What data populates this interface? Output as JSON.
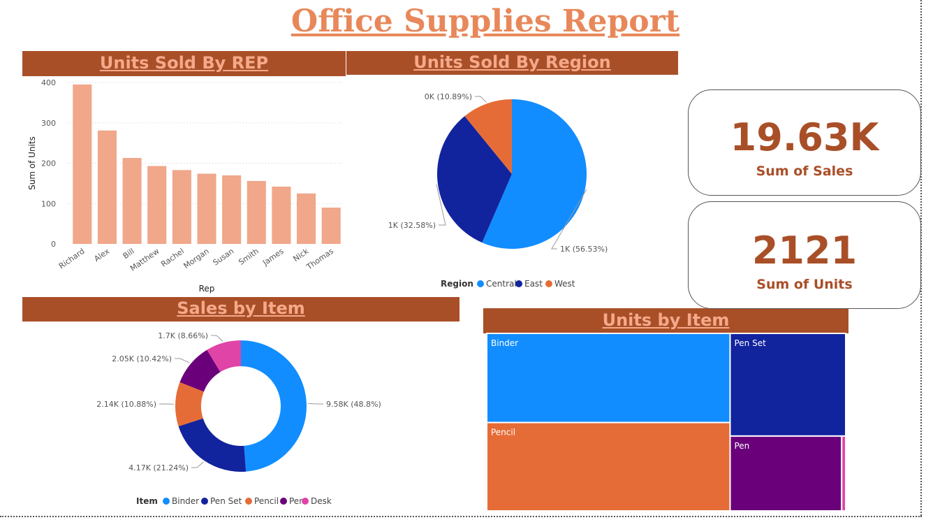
{
  "report": {
    "title": "Office Supplies Report"
  },
  "headers": {
    "rep": "Units Sold By REP",
    "region": "Units Sold By Region",
    "sales_item": "Sales by Item",
    "units_item": "Units by Item"
  },
  "kpis": {
    "sales": {
      "value": "19.63K",
      "label": "Sum of Sales"
    },
    "units": {
      "value": "2121",
      "label": "Sum of Units"
    }
  },
  "colors": {
    "header_bg": "#a94f28",
    "header_text": "#f5a98a",
    "bar": "#f0a78a",
    "blue": "#118dff",
    "navy": "#12239e",
    "orange": "#e66c37",
    "purple": "#6b007b",
    "pink": "#e044a7"
  },
  "chart_data": [
    {
      "type": "bar",
      "title": "Units Sold By REP",
      "xlabel": "Rep",
      "ylabel": "Sum of Units",
      "ylim": [
        0,
        400
      ],
      "yticks": [
        0,
        100,
        200,
        300,
        400
      ],
      "grid": true,
      "categories": [
        "Richard",
        "Alex",
        "Bill",
        "Matthew",
        "Rachel",
        "Morgan",
        "Susan",
        "Smith",
        "James",
        "Nick",
        "Thomas"
      ],
      "values": [
        395,
        281,
        213,
        193,
        183,
        174,
        170,
        156,
        142,
        125,
        90
      ]
    },
    {
      "type": "pie",
      "title": "Units Sold By Region",
      "legend_title": "Region",
      "legend_position": "bottom",
      "categories": [
        "Central",
        "East",
        "West"
      ],
      "values": [
        1199,
        691,
        231
      ],
      "percent": [
        56.53,
        32.58,
        10.89
      ],
      "data_labels": [
        "1K (56.53%)",
        "1K (32.58%)",
        "0K (10.89%)"
      ]
    },
    {
      "type": "pie",
      "subtype": "donut",
      "title": "Sales by Item",
      "legend_title": "Item",
      "legend_position": "bottom",
      "categories": [
        "Binder",
        "Pen Set",
        "Pencil",
        "Pen",
        "Desk"
      ],
      "values": [
        9580,
        4170,
        2140,
        2050,
        1700
      ],
      "percent": [
        48.8,
        21.24,
        10.88,
        10.42,
        8.66
      ],
      "data_labels": [
        "9.58K (48.8%)",
        "4.17K (21.24%)",
        "2.14K (10.88%)",
        "2.05K (10.42%)",
        "1.7K (8.66%)"
      ]
    },
    {
      "type": "treemap",
      "title": "Units by Item",
      "categories": [
        "Binder",
        "Pencil",
        "Pen Set",
        "Pen",
        "Desk"
      ],
      "values": [
        722,
        716,
        395,
        278,
        10
      ]
    }
  ]
}
